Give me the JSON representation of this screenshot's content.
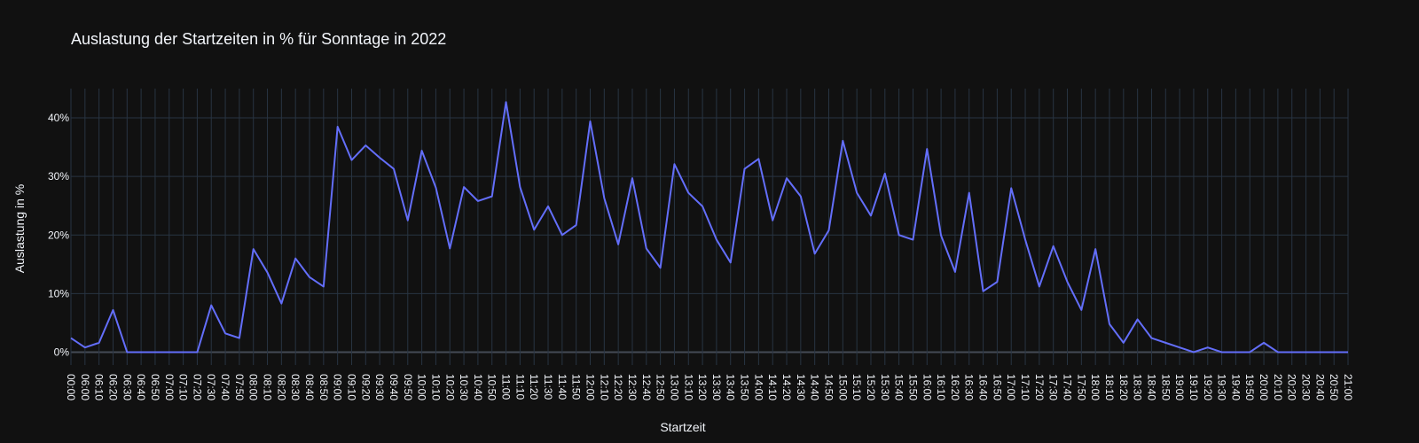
{
  "chart_data": {
    "type": "line",
    "title": "Auslastung der Startzeiten in % für Sonntage in 2022",
    "xlabel": "Startzeit",
    "ylabel": "Auslastung in %",
    "y_tick_labels": [
      "0%",
      "10%",
      "20%",
      "30%",
      "40%"
    ],
    "y_ticks": [
      0,
      10,
      20,
      30,
      40
    ],
    "ylim": [
      -2.2,
      45
    ],
    "grid": true,
    "line_color": "#636efa",
    "categories": [
      "00:00",
      "06:00",
      "06:10",
      "06:20",
      "06:30",
      "06:40",
      "06:50",
      "07:00",
      "07:10",
      "07:20",
      "07:30",
      "07:40",
      "07:50",
      "08:00",
      "08:10",
      "08:20",
      "08:30",
      "08:40",
      "08:50",
      "09:00",
      "09:10",
      "09:20",
      "09:30",
      "09:40",
      "09:50",
      "10:00",
      "10:10",
      "10:20",
      "10:30",
      "10:40",
      "10:50",
      "11:00",
      "11:10",
      "11:20",
      "11:30",
      "11:40",
      "11:50",
      "12:00",
      "12:10",
      "12:20",
      "12:30",
      "12:40",
      "12:50",
      "13:00",
      "13:10",
      "13:20",
      "13:30",
      "13:40",
      "13:50",
      "14:00",
      "14:10",
      "14:20",
      "14:30",
      "14:40",
      "14:50",
      "15:00",
      "15:10",
      "15:20",
      "15:30",
      "15:40",
      "15:50",
      "16:00",
      "16:10",
      "16:20",
      "16:30",
      "16:40",
      "16:50",
      "17:00",
      "17:10",
      "17:20",
      "17:30",
      "17:40",
      "17:50",
      "18:00",
      "18:10",
      "18:20",
      "18:30",
      "18:40",
      "18:50",
      "19:00",
      "19:10",
      "19:20",
      "19:30",
      "19:40",
      "19:50",
      "20:00",
      "20:10",
      "20:20",
      "20:30",
      "20:40",
      "20:50",
      "21:00"
    ],
    "values": [
      2.4,
      0.8,
      1.6,
      7.2,
      0,
      0,
      0,
      0,
      0,
      0,
      8.0,
      3.2,
      2.4,
      17.6,
      13.6,
      8.3,
      16.0,
      12.8,
      11.2,
      38.5,
      32.8,
      35.3,
      33.2,
      31.3,
      22.5,
      34.4,
      28.1,
      17.7,
      28.2,
      25.8,
      26.6,
      42.7,
      28.2,
      20.9,
      24.9,
      20.0,
      21.7,
      39.4,
      26.3,
      18.4,
      29.7,
      17.7,
      14.4,
      32.1,
      27.2,
      24.9,
      19.2,
      15.3,
      31.3,
      33.0,
      22.5,
      29.7,
      26.6,
      16.8,
      20.8,
      36.1,
      27.2,
      23.3,
      30.5,
      20.0,
      19.2,
      34.7,
      19.9,
      13.7,
      27.2,
      10.4,
      12.0,
      28.0,
      19.2,
      11.2,
      18.1,
      12.0,
      7.2,
      17.6,
      4.8,
      1.6,
      5.6,
      2.4,
      1.6,
      0.8,
      0,
      0.8,
      0,
      0,
      0,
      1.6,
      0,
      0,
      0,
      0,
      0,
      0
    ]
  }
}
